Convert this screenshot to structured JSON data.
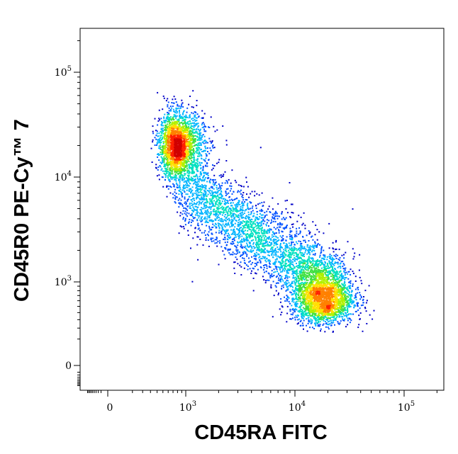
{
  "chart_data": {
    "type": "scatter",
    "style": "density-colored flow cytometry dot plot",
    "title": "",
    "xlabel": "CD45RA FITC",
    "ylabel": "CD45R0 PE-Cy™ 7",
    "xscale": "biexponential",
    "yscale": "biexponential",
    "grid": false,
    "x_ticks": [
      {
        "value": 0,
        "base": "0",
        "exp": ""
      },
      {
        "value": 1000,
        "base": "10",
        "exp": "3"
      },
      {
        "value": 10000,
        "base": "10",
        "exp": "4"
      },
      {
        "value": 100000,
        "base": "10",
        "exp": "5"
      }
    ],
    "y_ticks": [
      {
        "value": 0,
        "base": "0",
        "exp": ""
      },
      {
        "value": 1000,
        "base": "10",
        "exp": "3"
      },
      {
        "value": 10000,
        "base": "10",
        "exp": "4"
      },
      {
        "value": 100000,
        "base": "10",
        "exp": "5"
      }
    ],
    "populations": [
      {
        "name": "",
        "x_center": 800,
        "y_center": 20000,
        "x_spread": 0.13,
        "y_spread": 0.16,
        "count": 2400
      },
      {
        "name": "",
        "x_center": 18000,
        "y_center": 700,
        "x_spread": 0.14,
        "y_spread": 0.2,
        "count": 2600
      },
      {
        "name": "",
        "x_from": 1000,
        "y_from": 8000,
        "x_to": 15000,
        "y_to": 1200,
        "count": 2600
      }
    ],
    "density_colors": [
      "#0000c8",
      "#0050ff",
      "#00b4ff",
      "#00e0c0",
      "#40e040",
      "#b0f000",
      "#ffe000",
      "#ff8000",
      "#ff2000",
      "#d00000"
    ]
  }
}
